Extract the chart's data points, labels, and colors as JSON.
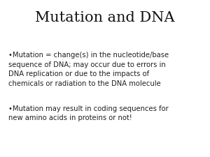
{
  "title": "Mutation and DNA",
  "title_fontsize": 15,
  "title_color": "#111111",
  "background_color": "#ffffff",
  "bullet1_line1": "•Mutation = change(s) in the nucleotide/base",
  "bullet1_line2": "sequence of DNA; may occur due to errors in",
  "bullet1_line3": "DNA replication or due to the impacts of",
  "bullet1_line4": "chemicals or radiation to the DNA molecule",
  "bullet2_line1": "•Mutation may result in coding sequences for",
  "bullet2_line2": "new amino acids in proteins or not!",
  "text_fontsize": 7.2,
  "text_color": "#222222"
}
